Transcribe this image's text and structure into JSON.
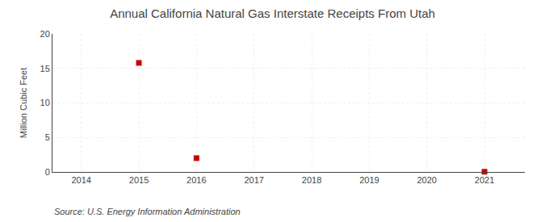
{
  "chart_data": {
    "type": "scatter",
    "title": "Annual California Natural Gas Interstate Receipts From Utah",
    "ylabel": "Million Cubic Feet",
    "annotations": [
      "Source: U.S. Energy Information Administration"
    ],
    "x": [
      2015,
      2016,
      2021
    ],
    "values": [
      15.8,
      2.0,
      0.03
    ],
    "color": "#cc0000",
    "marker": "square",
    "xlim": [
      2013.5,
      2021.7
    ],
    "xticks": [
      2014,
      2015,
      2016,
      2017,
      2018,
      2019,
      2020,
      2021
    ],
    "ylim": [
      0,
      20
    ],
    "yticks": [
      0,
      5,
      10,
      15,
      20
    ],
    "grid": true
  }
}
